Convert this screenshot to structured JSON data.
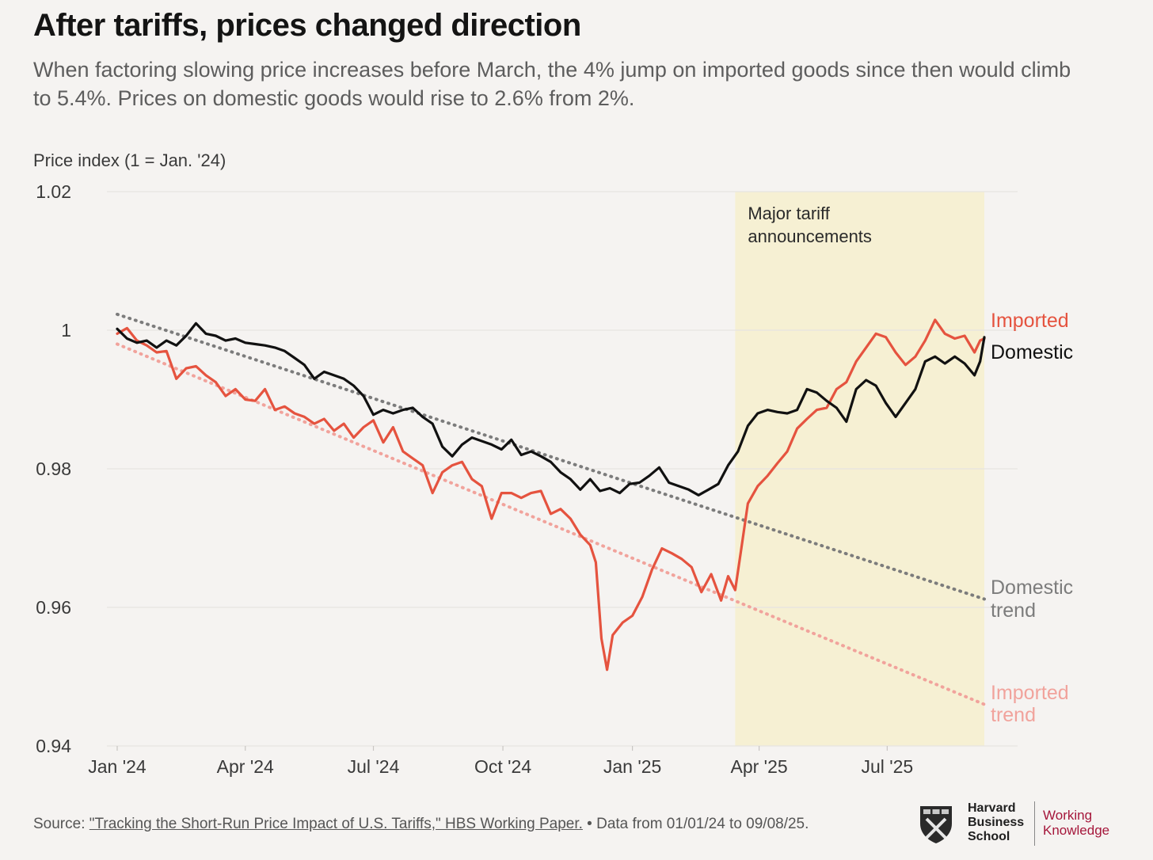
{
  "title": "After tariffs, prices changed direction",
  "subtitle": "When factoring slowing price increases before March, the 4% jump on imported goods since then would climb to 5.4%. Prices on domestic goods would rise to 2.6% from 2%.",
  "footer": {
    "source_prefix": "Source: ",
    "source_link": "\"Tracking the Short-Run Price Impact of U.S. Tariffs,\" HBS Working Paper.",
    "source_suffix": " • Data from 01/01/24 to 09/08/25."
  },
  "logo": {
    "line1": "Harvard",
    "line2": "Business",
    "line3": "School",
    "wk1": "Working",
    "wk2": "Knowledge"
  },
  "chart_data": {
    "type": "line",
    "ylabel": "Price index (1 = Jan. '24)",
    "ylim": [
      0.94,
      1.02
    ],
    "yticks": [
      {
        "value": 0.94,
        "label": "0.94"
      },
      {
        "value": 0.96,
        "label": "0.96"
      },
      {
        "value": 0.98,
        "label": "0.98"
      },
      {
        "value": 1.0,
        "label": "1"
      },
      {
        "value": 1.02,
        "label": "1.02"
      }
    ],
    "xlim": [
      "2024-01-01",
      "2025-09-08"
    ],
    "xticks": [
      {
        "date": "2024-01-01",
        "label": "Jan '24"
      },
      {
        "date": "2024-04-01",
        "label": "Apr '24"
      },
      {
        "date": "2024-07-01",
        "label": "Jul '24"
      },
      {
        "date": "2024-10-01",
        "label": "Oct '24"
      },
      {
        "date": "2025-01-01",
        "label": "Jan '25"
      },
      {
        "date": "2025-04-01",
        "label": "Apr '25"
      },
      {
        "date": "2025-07-01",
        "label": "Jul '25"
      }
    ],
    "grid": true,
    "band": {
      "start": "2025-03-15",
      "end": "2025-09-08",
      "label_line1": "Major tariff",
      "label_line2": "announcements",
      "color": "#f6f0d3"
    },
    "series": [
      {
        "name": "Imported",
        "color": "#e5533f",
        "points": [
          [
            "2024-01-01",
            0.9995
          ],
          [
            "2024-01-08",
            1.0003
          ],
          [
            "2024-01-15",
            0.9985
          ],
          [
            "2024-01-22",
            0.9978
          ],
          [
            "2024-01-29",
            0.9968
          ],
          [
            "2024-02-05",
            0.997
          ],
          [
            "2024-02-12",
            0.993
          ],
          [
            "2024-02-19",
            0.9945
          ],
          [
            "2024-02-26",
            0.9948
          ],
          [
            "2024-03-04",
            0.9935
          ],
          [
            "2024-03-11",
            0.9925
          ],
          [
            "2024-03-18",
            0.9905
          ],
          [
            "2024-03-25",
            0.9915
          ],
          [
            "2024-04-01",
            0.99
          ],
          [
            "2024-04-08",
            0.9898
          ],
          [
            "2024-04-15",
            0.9915
          ],
          [
            "2024-04-22",
            0.9885
          ],
          [
            "2024-04-29",
            0.989
          ],
          [
            "2024-05-06",
            0.988
          ],
          [
            "2024-05-13",
            0.9875
          ],
          [
            "2024-05-20",
            0.9865
          ],
          [
            "2024-05-27",
            0.9872
          ],
          [
            "2024-06-03",
            0.9855
          ],
          [
            "2024-06-10",
            0.9865
          ],
          [
            "2024-06-17",
            0.9845
          ],
          [
            "2024-06-24",
            0.986
          ],
          [
            "2024-07-01",
            0.987
          ],
          [
            "2024-07-08",
            0.9838
          ],
          [
            "2024-07-15",
            0.986
          ],
          [
            "2024-07-22",
            0.9825
          ],
          [
            "2024-07-29",
            0.9815
          ],
          [
            "2024-08-05",
            0.9805
          ],
          [
            "2024-08-12",
            0.9765
          ],
          [
            "2024-08-19",
            0.9795
          ],
          [
            "2024-08-26",
            0.9805
          ],
          [
            "2024-09-02",
            0.981
          ],
          [
            "2024-09-09",
            0.9785
          ],
          [
            "2024-09-16",
            0.9775
          ],
          [
            "2024-09-23",
            0.9728
          ],
          [
            "2024-09-30",
            0.9765
          ],
          [
            "2024-10-07",
            0.9765
          ],
          [
            "2024-10-14",
            0.9758
          ],
          [
            "2024-10-21",
            0.9765
          ],
          [
            "2024-10-28",
            0.9768
          ],
          [
            "2024-11-04",
            0.9735
          ],
          [
            "2024-11-11",
            0.9742
          ],
          [
            "2024-11-18",
            0.9728
          ],
          [
            "2024-11-25",
            0.9705
          ],
          [
            "2024-12-02",
            0.969
          ],
          [
            "2024-12-06",
            0.9665
          ],
          [
            "2024-12-10",
            0.9555
          ],
          [
            "2024-12-14",
            0.951
          ],
          [
            "2024-12-18",
            0.956
          ],
          [
            "2024-12-25",
            0.9578
          ],
          [
            "2025-01-01",
            0.9588
          ],
          [
            "2025-01-08",
            0.9615
          ],
          [
            "2025-01-15",
            0.9655
          ],
          [
            "2025-01-22",
            0.9685
          ],
          [
            "2025-01-29",
            0.9678
          ],
          [
            "2025-02-05",
            0.967
          ],
          [
            "2025-02-12",
            0.9658
          ],
          [
            "2025-02-19",
            0.9622
          ],
          [
            "2025-02-26",
            0.9648
          ],
          [
            "2025-03-05",
            0.961
          ],
          [
            "2025-03-10",
            0.9645
          ],
          [
            "2025-03-15",
            0.9625
          ],
          [
            "2025-03-19",
            0.968
          ],
          [
            "2025-03-24",
            0.975
          ],
          [
            "2025-03-31",
            0.9775
          ],
          [
            "2025-04-07",
            0.979
          ],
          [
            "2025-04-14",
            0.9808
          ],
          [
            "2025-04-21",
            0.9825
          ],
          [
            "2025-04-28",
            0.9858
          ],
          [
            "2025-05-05",
            0.9872
          ],
          [
            "2025-05-12",
            0.9885
          ],
          [
            "2025-05-19",
            0.9888
          ],
          [
            "2025-05-26",
            0.9915
          ],
          [
            "2025-06-02",
            0.9925
          ],
          [
            "2025-06-09",
            0.9955
          ],
          [
            "2025-06-16",
            0.9975
          ],
          [
            "2025-06-23",
            0.9995
          ],
          [
            "2025-06-30",
            0.999
          ],
          [
            "2025-07-07",
            0.9968
          ],
          [
            "2025-07-14",
            0.995
          ],
          [
            "2025-07-21",
            0.9962
          ],
          [
            "2025-07-28",
            0.9985
          ],
          [
            "2025-08-04",
            1.0015
          ],
          [
            "2025-08-11",
            0.9995
          ],
          [
            "2025-08-18",
            0.9988
          ],
          [
            "2025-08-25",
            0.9992
          ],
          [
            "2025-09-01",
            0.9968
          ],
          [
            "2025-09-05",
            0.9985
          ],
          [
            "2025-09-08",
            0.9988
          ]
        ]
      },
      {
        "name": "Domestic",
        "color": "#111111",
        "points": [
          [
            "2024-01-01",
            1.0002
          ],
          [
            "2024-01-08",
            0.9988
          ],
          [
            "2024-01-15",
            0.9982
          ],
          [
            "2024-01-22",
            0.9985
          ],
          [
            "2024-01-29",
            0.9975
          ],
          [
            "2024-02-05",
            0.9985
          ],
          [
            "2024-02-12",
            0.9978
          ],
          [
            "2024-02-19",
            0.9992
          ],
          [
            "2024-02-26",
            1.001
          ],
          [
            "2024-03-04",
            0.9995
          ],
          [
            "2024-03-11",
            0.9992
          ],
          [
            "2024-03-18",
            0.9985
          ],
          [
            "2024-03-25",
            0.9988
          ],
          [
            "2024-04-01",
            0.9982
          ],
          [
            "2024-04-08",
            0.998
          ],
          [
            "2024-04-15",
            0.9978
          ],
          [
            "2024-04-22",
            0.9975
          ],
          [
            "2024-04-29",
            0.997
          ],
          [
            "2024-05-06",
            0.996
          ],
          [
            "2024-05-13",
            0.995
          ],
          [
            "2024-05-20",
            0.993
          ],
          [
            "2024-05-27",
            0.994
          ],
          [
            "2024-06-03",
            0.9935
          ],
          [
            "2024-06-10",
            0.993
          ],
          [
            "2024-06-17",
            0.992
          ],
          [
            "2024-06-24",
            0.9905
          ],
          [
            "2024-07-01",
            0.9878
          ],
          [
            "2024-07-08",
            0.9885
          ],
          [
            "2024-07-15",
            0.988
          ],
          [
            "2024-07-22",
            0.9885
          ],
          [
            "2024-07-29",
            0.9888
          ],
          [
            "2024-08-05",
            0.9875
          ],
          [
            "2024-08-12",
            0.9865
          ],
          [
            "2024-08-19",
            0.9832
          ],
          [
            "2024-08-26",
            0.9818
          ],
          [
            "2024-09-02",
            0.9835
          ],
          [
            "2024-09-09",
            0.9845
          ],
          [
            "2024-09-16",
            0.984
          ],
          [
            "2024-09-23",
            0.9835
          ],
          [
            "2024-09-30",
            0.9828
          ],
          [
            "2024-10-07",
            0.9842
          ],
          [
            "2024-10-14",
            0.982
          ],
          [
            "2024-10-21",
            0.9825
          ],
          [
            "2024-10-28",
            0.9818
          ],
          [
            "2024-11-04",
            0.981
          ],
          [
            "2024-11-11",
            0.9795
          ],
          [
            "2024-11-18",
            0.9785
          ],
          [
            "2024-11-25",
            0.977
          ],
          [
            "2024-12-02",
            0.9785
          ],
          [
            "2024-12-09",
            0.9768
          ],
          [
            "2024-12-16",
            0.9772
          ],
          [
            "2024-12-23",
            0.9765
          ],
          [
            "2024-12-30",
            0.9778
          ],
          [
            "2025-01-06",
            0.978
          ],
          [
            "2025-01-13",
            0.979
          ],
          [
            "2025-01-20",
            0.9802
          ],
          [
            "2025-01-27",
            0.978
          ],
          [
            "2025-02-03",
            0.9775
          ],
          [
            "2025-02-10",
            0.977
          ],
          [
            "2025-02-17",
            0.9762
          ],
          [
            "2025-02-24",
            0.977
          ],
          [
            "2025-03-03",
            0.9778
          ],
          [
            "2025-03-10",
            0.9805
          ],
          [
            "2025-03-17",
            0.9825
          ],
          [
            "2025-03-24",
            0.9862
          ],
          [
            "2025-03-31",
            0.988
          ],
          [
            "2025-04-07",
            0.9885
          ],
          [
            "2025-04-14",
            0.9882
          ],
          [
            "2025-04-21",
            0.988
          ],
          [
            "2025-04-28",
            0.9885
          ],
          [
            "2025-05-05",
            0.9915
          ],
          [
            "2025-05-12",
            0.991
          ],
          [
            "2025-05-19",
            0.9898
          ],
          [
            "2025-05-26",
            0.9888
          ],
          [
            "2025-06-02",
            0.9868
          ],
          [
            "2025-06-09",
            0.9915
          ],
          [
            "2025-06-16",
            0.9928
          ],
          [
            "2025-06-23",
            0.992
          ],
          [
            "2025-06-30",
            0.9895
          ],
          [
            "2025-07-07",
            0.9875
          ],
          [
            "2025-07-14",
            0.9895
          ],
          [
            "2025-07-21",
            0.9915
          ],
          [
            "2025-07-28",
            0.9955
          ],
          [
            "2025-08-04",
            0.9962
          ],
          [
            "2025-08-11",
            0.9952
          ],
          [
            "2025-08-18",
            0.9962
          ],
          [
            "2025-08-25",
            0.9952
          ],
          [
            "2025-09-01",
            0.9935
          ],
          [
            "2025-09-05",
            0.9955
          ],
          [
            "2025-09-08",
            0.999
          ]
        ]
      },
      {
        "name": "Domestic trend",
        "label_line1": "Domestic",
        "label_line2": "trend",
        "color": "#7c7c7c",
        "dashed": true,
        "points": [
          [
            "2024-01-01",
            1.0023
          ],
          [
            "2025-09-08",
            0.9612
          ]
        ]
      },
      {
        "name": "Imported trend",
        "label_line1": "Imported",
        "label_line2": "trend",
        "color": "#f1a39c",
        "dashed": true,
        "points": [
          [
            "2024-01-01",
            0.998
          ],
          [
            "2025-09-08",
            0.946
          ]
        ]
      }
    ]
  }
}
